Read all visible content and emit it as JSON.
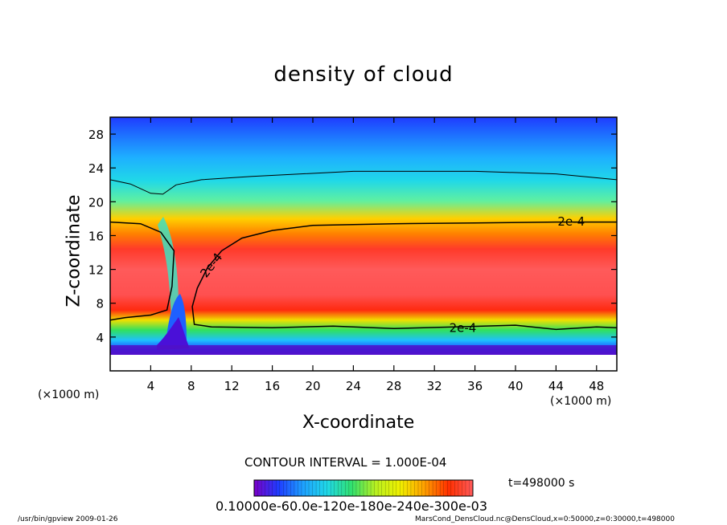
{
  "chart_data": {
    "type": "heatmap",
    "title": "density of cloud",
    "xlabel": "X-coordinate",
    "ylabel": "Z-coordinate",
    "x_unit": "(×1000 m)",
    "y_unit": "(×1000 m)",
    "xlim": [
      0,
      50
    ],
    "ylim": [
      0,
      30
    ],
    "xticks": [
      4,
      8,
      12,
      16,
      20,
      24,
      28,
      32,
      36,
      40,
      44,
      48
    ],
    "yticks": [
      4,
      8,
      12,
      16,
      20,
      24,
      28
    ],
    "contour_label": "2e-4",
    "contour_interval": "CONTOUR INTERVAL = 1.000E-04",
    "time": "t=498000 s",
    "colorbar_labels": "0.10000e-60.0e-120e-180e-240e-300e-03",
    "contour_2e4_upper": [
      [
        0,
        17.6
      ],
      [
        3,
        17.4
      ],
      [
        5,
        16.4
      ],
      [
        6.3,
        14.2
      ],
      [
        6.1,
        10
      ],
      [
        5.6,
        7.2
      ],
      [
        4,
        6.6
      ],
      [
        1.5,
        6.3
      ],
      [
        0,
        6
      ]
    ],
    "contour_2e4_main": [
      [
        50,
        17.6
      ],
      [
        44,
        17.6
      ],
      [
        36,
        17.5
      ],
      [
        28,
        17.4
      ],
      [
        20,
        17.2
      ],
      [
        16,
        16.6
      ],
      [
        13,
        15.7
      ],
      [
        11,
        14.2
      ],
      [
        9.6,
        12.2
      ],
      [
        8.6,
        9.8
      ],
      [
        8.1,
        7.6
      ],
      [
        8.3,
        5.5
      ],
      [
        10,
        5.2
      ],
      [
        16,
        5.1
      ],
      [
        22,
        5.3
      ],
      [
        28,
        5.0
      ],
      [
        34,
        5.2
      ],
      [
        40,
        5.4
      ],
      [
        44,
        4.9
      ],
      [
        48,
        5.2
      ],
      [
        50,
        5.1
      ]
    ],
    "contour_1e4": [
      [
        0,
        22.6
      ],
      [
        2,
        22.1
      ],
      [
        4,
        21.0
      ],
      [
        5.2,
        20.9
      ],
      [
        6.5,
        22.0
      ],
      [
        9,
        22.6
      ],
      [
        14,
        23.0
      ],
      [
        24,
        23.6
      ],
      [
        36,
        23.6
      ],
      [
        44,
        23.3
      ],
      [
        50,
        22.6
      ]
    ],
    "colormap": [
      "#7a00c8",
      "#1f3cff",
      "#1ea0ff",
      "#20d8e8",
      "#30e070",
      "#b8f020",
      "#f0f000",
      "#ffa000",
      "#ff3000",
      "#ff5a5a"
    ]
  },
  "footer": {
    "program": "/usr/bin/gpview   2009-01-26",
    "source": "MarsCond_DensCloud.nc@DensCloud,x=0:50000,z=0:30000,t=498000"
  }
}
